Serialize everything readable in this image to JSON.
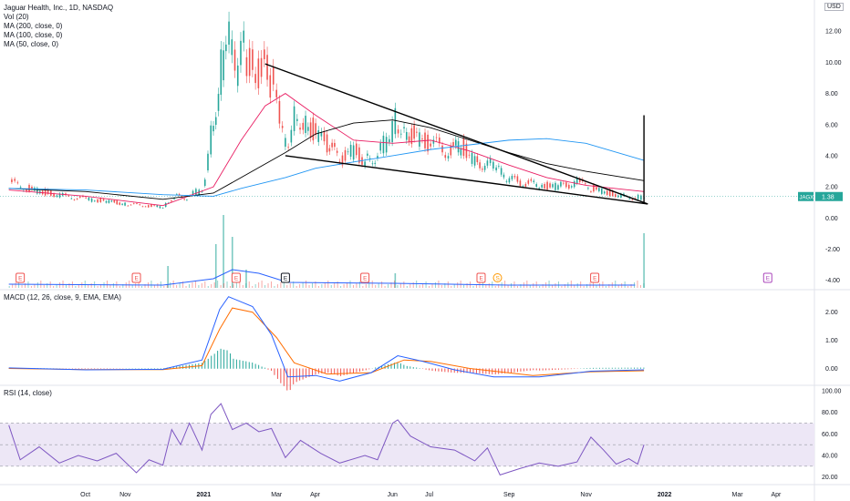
{
  "header": {
    "title": "Jaguar Health, Inc., 1D, NASDAQ",
    "indicators": [
      "Vol (20)",
      "MA (200, close, 0)",
      "MA (100, close, 0)",
      "MA (50, close, 0)"
    ],
    "currency": "USD",
    "price_badge_symbol": "JAGX",
    "price_badge_value": "1.38"
  },
  "macd_panel": {
    "label": "MACD (12, 26, close, 9, EMA, EMA)"
  },
  "rsi_panel": {
    "label": "RSI (14, close)"
  },
  "colors": {
    "up": "#26a69a",
    "down": "#ef5350",
    "ma50": "#e91e63",
    "ma100": "#000000",
    "ma200": "#2196f3",
    "macd": "#2962ff",
    "signal": "#ff6d00",
    "rsi": "#7e57c2",
    "rsi_band": "#ede7f6"
  },
  "events": [
    {
      "type": "E",
      "x": "2020-08-10"
    },
    {
      "type": "E",
      "x": "2020-11-10"
    },
    {
      "type": "E",
      "x": "2021-01-28"
    },
    {
      "type": "E",
      "x": "2021-03-08"
    },
    {
      "type": "E",
      "x": "2021-05-10"
    },
    {
      "type": "E",
      "x": "2021-08-10"
    },
    {
      "type": "S",
      "x": "2021-08-23"
    },
    {
      "type": "E",
      "x": "2021-11-08"
    },
    {
      "type": "E",
      "x": "2022-03-25"
    }
  ],
  "chart_data": [
    {
      "type": "candlestick",
      "title": "Jaguar Health, Inc., 1D, NASDAQ",
      "x_tick_labels": [
        "Oct",
        "Nov",
        "2021",
        "Mar",
        "Apr",
        "Jun",
        "Jul",
        "Sep",
        "Nov",
        "2022",
        "Mar",
        "Apr"
      ],
      "y_tick_labels": [
        "12.00",
        "10.00",
        "8.00",
        "6.00",
        "4.00",
        "2.00",
        "0.00",
        "-2.00",
        "-4.00"
      ],
      "ylim": [
        -4.6,
        14
      ],
      "price_series": [
        {
          "x": "2020-08-01",
          "close": 2.3
        },
        {
          "x": "2020-08-15",
          "close": 1.9
        },
        {
          "x": "2020-09-01",
          "close": 1.6
        },
        {
          "x": "2020-09-15",
          "close": 1.4
        },
        {
          "x": "2020-10-01",
          "close": 1.2
        },
        {
          "x": "2020-10-15",
          "close": 1.1
        },
        {
          "x": "2020-11-01",
          "close": 0.9
        },
        {
          "x": "2020-11-15",
          "close": 0.8
        },
        {
          "x": "2020-12-01",
          "close": 0.7
        },
        {
          "x": "2020-12-10",
          "close": 1.4
        },
        {
          "x": "2020-12-20",
          "close": 1.3
        },
        {
          "x": "2021-01-01",
          "close": 1.9
        },
        {
          "x": "2021-01-08",
          "close": 5.5
        },
        {
          "x": "2021-01-14",
          "close": 8.5
        },
        {
          "x": "2021-01-20",
          "close": 12.6
        },
        {
          "x": "2021-01-27",
          "close": 9.5
        },
        {
          "x": "2021-02-03",
          "close": 10.8
        },
        {
          "x": "2021-02-10",
          "close": 8.9
        },
        {
          "x": "2021-02-17",
          "close": 9.8
        },
        {
          "x": "2021-02-24",
          "close": 8.7
        },
        {
          "x": "2021-03-01",
          "close": 7.0
        },
        {
          "x": "2021-03-08",
          "close": 4.6
        },
        {
          "x": "2021-03-15",
          "close": 6.8
        },
        {
          "x": "2021-03-22",
          "close": 6.2
        },
        {
          "x": "2021-04-01",
          "close": 5.4
        },
        {
          "x": "2021-04-10",
          "close": 4.6
        },
        {
          "x": "2021-04-20",
          "close": 3.8
        },
        {
          "x": "2021-05-01",
          "close": 4.3
        },
        {
          "x": "2021-05-10",
          "close": 3.6
        },
        {
          "x": "2021-05-20",
          "close": 4.1
        },
        {
          "x": "2021-05-27",
          "close": 5.0
        },
        {
          "x": "2021-06-03",
          "close": 6.3
        },
        {
          "x": "2021-06-10",
          "close": 5.7
        },
        {
          "x": "2021-06-20",
          "close": 5.0
        },
        {
          "x": "2021-07-01",
          "close": 4.8
        },
        {
          "x": "2021-07-15",
          "close": 4.3
        },
        {
          "x": "2021-07-25",
          "close": 4.6
        },
        {
          "x": "2021-08-05",
          "close": 3.6
        },
        {
          "x": "2021-08-15",
          "close": 3.4
        },
        {
          "x": "2021-08-22",
          "close": 3.5
        },
        {
          "x": "2021-08-28",
          "close": 2.6
        },
        {
          "x": "2021-09-10",
          "close": 2.3
        },
        {
          "x": "2021-09-25",
          "close": 2.1
        },
        {
          "x": "2021-10-10",
          "close": 2.0
        },
        {
          "x": "2021-10-25",
          "close": 2.3
        },
        {
          "x": "2021-11-05",
          "close": 1.9
        },
        {
          "x": "2021-11-20",
          "close": 1.6
        },
        {
          "x": "2021-12-01",
          "close": 1.4
        },
        {
          "x": "2021-12-10",
          "close": 1.3
        },
        {
          "x": "2021-12-17",
          "close": 1.38
        }
      ],
      "moving_averages": [
        {
          "name": "MA (50, close, 0)",
          "color": "#e91e63",
          "points": [
            [
              "2020-08-01",
              1.8
            ],
            [
              "2020-10-01",
              1.4
            ],
            [
              "2020-12-01",
              0.8
            ],
            [
              "2021-01-10",
              2.0
            ],
            [
              "2021-02-01",
              5.0
            ],
            [
              "2021-02-20",
              7.2
            ],
            [
              "2021-03-08",
              8.0
            ],
            [
              "2021-04-01",
              6.6
            ],
            [
              "2021-05-01",
              5.0
            ],
            [
              "2021-06-01",
              4.8
            ],
            [
              "2021-07-01",
              5.0
            ],
            [
              "2021-08-01",
              4.3
            ],
            [
              "2021-09-01",
              3.4
            ],
            [
              "2021-10-01",
              2.6
            ],
            [
              "2021-11-01",
              2.1
            ],
            [
              "2021-12-17",
              1.7
            ]
          ]
        },
        {
          "name": "MA (100, close, 0)",
          "color": "#000000",
          "points": [
            [
              "2020-08-01",
              1.9
            ],
            [
              "2020-10-01",
              1.7
            ],
            [
              "2020-12-01",
              1.2
            ],
            [
              "2021-01-10",
              1.6
            ],
            [
              "2021-02-01",
              2.6
            ],
            [
              "2021-03-08",
              4.2
            ],
            [
              "2021-04-01",
              5.4
            ],
            [
              "2021-05-01",
              6.1
            ],
            [
              "2021-06-01",
              6.3
            ],
            [
              "2021-07-01",
              5.8
            ],
            [
              "2021-08-01",
              5.0
            ],
            [
              "2021-09-01",
              4.2
            ],
            [
              "2021-10-01",
              3.5
            ],
            [
              "2021-11-01",
              3.0
            ],
            [
              "2021-12-17",
              2.4
            ]
          ]
        },
        {
          "name": "MA (200, close, 0)",
          "color": "#2196f3",
          "points": [
            [
              "2020-08-01",
              1.9
            ],
            [
              "2020-10-01",
              1.8
            ],
            [
              "2020-12-01",
              1.5
            ],
            [
              "2021-01-10",
              1.4
            ],
            [
              "2021-02-01",
              1.9
            ],
            [
              "2021-03-08",
              2.6
            ],
            [
              "2021-04-01",
              3.2
            ],
            [
              "2021-05-01",
              3.6
            ],
            [
              "2021-06-01",
              4.0
            ],
            [
              "2021-07-01",
              4.4
            ],
            [
              "2021-08-01",
              4.7
            ],
            [
              "2021-09-01",
              5.0
            ],
            [
              "2021-10-01",
              5.1
            ],
            [
              "2021-11-01",
              4.8
            ],
            [
              "2021-12-17",
              3.7
            ]
          ]
        }
      ],
      "trendlines": [
        {
          "from": [
            "2021-02-20",
            9.9
          ],
          "to": [
            "2021-12-20",
            0.9
          ]
        },
        {
          "from": [
            "2021-03-08",
            4.0
          ],
          "to": [
            "2021-12-20",
            0.9
          ]
        },
        {
          "from": [
            "2021-12-17",
            6.6
          ],
          "to": [
            "2021-12-17",
            0.9
          ]
        }
      ],
      "volume": [
        {
          "x": "2020-12-05",
          "v": 0.3
        },
        {
          "x": "2021-01-12",
          "v": 0.6
        },
        {
          "x": "2021-01-18",
          "v": 1.0
        },
        {
          "x": "2021-01-25",
          "v": 0.7
        },
        {
          "x": "2021-02-05",
          "v": 0.25
        },
        {
          "x": "2021-06-03",
          "v": 0.2
        },
        {
          "x": "2021-12-17",
          "v": 0.75
        }
      ]
    },
    {
      "type": "line",
      "title": "MACD (12, 26, close, 9, EMA, EMA)",
      "y_tick_labels": [
        "2.00",
        "1.00",
        "0.00"
      ],
      "ylim": [
        -0.6,
        2.8
      ],
      "series": [
        {
          "name": "MACD",
          "points": [
            [
              "2020-08-01",
              0.02
            ],
            [
              "2020-10-01",
              -0.05
            ],
            [
              "2020-12-01",
              -0.03
            ],
            [
              "2021-01-01",
              0.3
            ],
            [
              "2021-01-15",
              2.1
            ],
            [
              "2021-01-22",
              2.55
            ],
            [
              "2021-02-10",
              2.2
            ],
            [
              "2021-02-25",
              1.2
            ],
            [
              "2021-03-10",
              -0.3
            ],
            [
              "2021-04-01",
              -0.25
            ],
            [
              "2021-04-20",
              -0.45
            ],
            [
              "2021-05-15",
              -0.15
            ],
            [
              "2021-06-05",
              0.45
            ],
            [
              "2021-06-25",
              0.25
            ],
            [
              "2021-07-20",
              -0.05
            ],
            [
              "2021-08-20",
              -0.3
            ],
            [
              "2021-09-25",
              -0.3
            ],
            [
              "2021-11-05",
              -0.1
            ],
            [
              "2021-12-17",
              -0.05
            ]
          ]
        },
        {
          "name": "Signal",
          "points": [
            [
              "2020-08-01",
              0.0
            ],
            [
              "2020-10-01",
              -0.04
            ],
            [
              "2020-12-01",
              -0.04
            ],
            [
              "2021-01-01",
              0.1
            ],
            [
              "2021-01-15",
              1.4
            ],
            [
              "2021-01-25",
              2.15
            ],
            [
              "2021-02-10",
              2.0
            ],
            [
              "2021-03-01",
              1.1
            ],
            [
              "2021-03-15",
              0.2
            ],
            [
              "2021-04-10",
              -0.2
            ],
            [
              "2021-05-15",
              -0.15
            ],
            [
              "2021-06-10",
              0.3
            ],
            [
              "2021-07-01",
              0.25
            ],
            [
              "2021-08-01",
              0.0
            ],
            [
              "2021-09-20",
              -0.25
            ],
            [
              "2021-11-05",
              -0.12
            ],
            [
              "2021-12-17",
              -0.08
            ]
          ]
        }
      ]
    },
    {
      "type": "line",
      "title": "RSI (14, close)",
      "y_tick_labels": [
        "100.00",
        "80.00",
        "60.00",
        "40.00",
        "20.00"
      ],
      "ylim": [
        13,
        105
      ],
      "band": [
        30,
        70
      ],
      "series": [
        {
          "name": "RSI",
          "points": [
            [
              "2020-08-01",
              68
            ],
            [
              "2020-08-10",
              36
            ],
            [
              "2020-08-25",
              48
            ],
            [
              "2020-09-10",
              33
            ],
            [
              "2020-09-25",
              40
            ],
            [
              "2020-10-10",
              35
            ],
            [
              "2020-10-25",
              42
            ],
            [
              "2020-11-10",
              24
            ],
            [
              "2020-11-20",
              36
            ],
            [
              "2020-12-01",
              31
            ],
            [
              "2020-12-08",
              64
            ],
            [
              "2020-12-15",
              50
            ],
            [
              "2020-12-22",
              70
            ],
            [
              "2021-01-01",
              45
            ],
            [
              "2021-01-08",
              78
            ],
            [
              "2021-01-16",
              88
            ],
            [
              "2021-01-25",
              64
            ],
            [
              "2021-02-05",
              70
            ],
            [
              "2021-02-15",
              62
            ],
            [
              "2021-02-25",
              65
            ],
            [
              "2021-03-08",
              38
            ],
            [
              "2021-03-20",
              54
            ],
            [
              "2021-04-05",
              42
            ],
            [
              "2021-04-20",
              33
            ],
            [
              "2021-05-10",
              40
            ],
            [
              "2021-05-20",
              36
            ],
            [
              "2021-06-01",
              70
            ],
            [
              "2021-06-05",
              73
            ],
            [
              "2021-06-15",
              58
            ],
            [
              "2021-07-01",
              48
            ],
            [
              "2021-07-20",
              45
            ],
            [
              "2021-08-05",
              35
            ],
            [
              "2021-08-15",
              47
            ],
            [
              "2021-08-25",
              22
            ],
            [
              "2021-09-10",
              28
            ],
            [
              "2021-09-25",
              33
            ],
            [
              "2021-10-10",
              30
            ],
            [
              "2021-10-25",
              34
            ],
            [
              "2021-11-05",
              57
            ],
            [
              "2021-11-15",
              45
            ],
            [
              "2021-11-25",
              32
            ],
            [
              "2021-12-05",
              37
            ],
            [
              "2021-12-12",
              32
            ],
            [
              "2021-12-17",
              50
            ]
          ]
        }
      ]
    }
  ]
}
